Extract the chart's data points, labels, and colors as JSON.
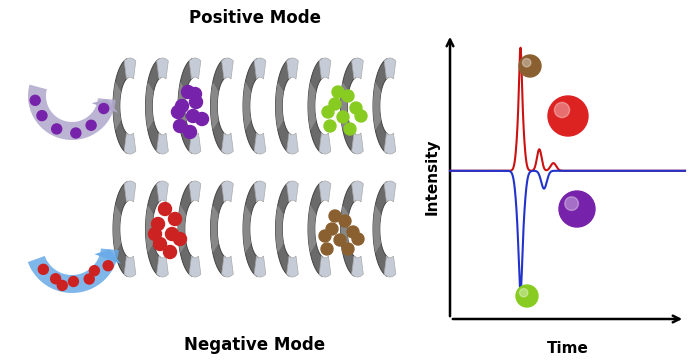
{
  "title_top": "Positive Mode",
  "title_bottom": "Negative Mode",
  "axis_xlabel": "Time",
  "axis_ylabel": "Intensity",
  "bg_color": "#ffffff",
  "coil_gray_dark": "#6a6a6a",
  "coil_gray_mid": "#909090",
  "coil_highlight": "#c5ccd8",
  "arrow_blue": "#6aabe8",
  "arrow_purple_fill": "#b0a8cc",
  "dot_red": "#cc2222",
  "dot_brown": "#8a6030",
  "dot_purple": "#7722aa",
  "dot_green": "#88cc22",
  "line_red": "#cc1111",
  "line_blue": "#2233cc",
  "sphere_red": "#dd2222",
  "sphere_brown": "#8a6030",
  "sphere_purple": "#7722aa",
  "sphere_green": "#88cc22",
  "font_size_title": 12,
  "font_size_axis": 11
}
